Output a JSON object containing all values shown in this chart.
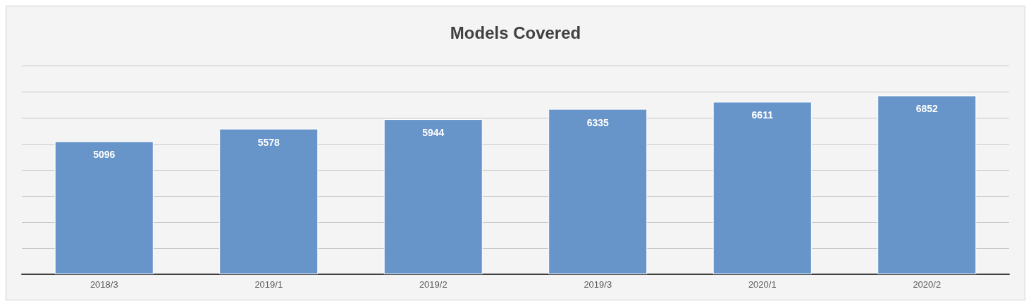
{
  "chart_data": {
    "type": "bar",
    "title": "Models Covered",
    "categories": [
      "2018/3",
      "2019/1",
      "2019/2",
      "2019/3",
      "2020/1",
      "2020/2"
    ],
    "values": [
      5096,
      5578,
      5944,
      6335,
      6611,
      6852
    ],
    "color": "#6794c9",
    "ylim": [
      0,
      8000
    ],
    "yticks": [
      {
        "value": 0,
        "label": null
      },
      {
        "value": 1000,
        "label": null
      },
      {
        "value": 2000,
        "label": null
      },
      {
        "value": 3000,
        "label": null
      },
      {
        "value": 4000,
        "label": null
      },
      {
        "value": 5000,
        "label": null
      },
      {
        "value": 6000,
        "label": null
      },
      {
        "value": 7000,
        "label": null
      },
      {
        "value": 8000,
        "label": null
      }
    ],
    "grid": "y",
    "data_labels": true,
    "tick_labels": "x"
  }
}
